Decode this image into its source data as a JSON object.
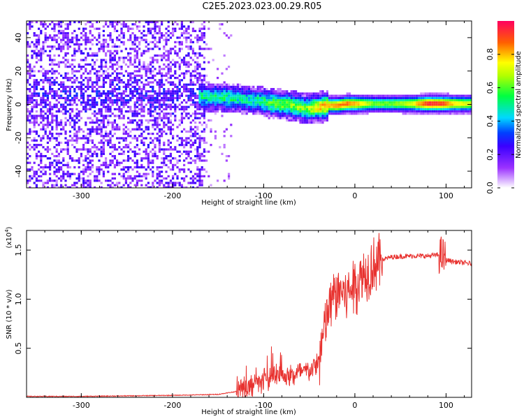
{
  "title": "C2E5.2023.023.00.29.R05",
  "chart_data": [
    {
      "type": "heatmap",
      "title": "C2E5.2023.023.00.29.R05",
      "xlabel": "Height of straight line (km)",
      "ylabel": "Frequency (Hz)",
      "xlim": [
        -360,
        128
      ],
      "ylim": [
        -50,
        50
      ],
      "xticks": [
        -300,
        -200,
        -100,
        0,
        100
      ],
      "yticks": [
        -40,
        -20,
        0,
        20,
        40
      ],
      "xtick_labels": [
        "-300",
        "-200",
        "-100",
        "0",
        "100"
      ],
      "ytick_labels": [
        "-40",
        "-20",
        "0",
        "20",
        "40"
      ],
      "ridge": {
        "x": [
          -170,
          -150,
          -130,
          -110,
          -90,
          -70,
          -55,
          -40,
          -30,
          -20,
          -10,
          0,
          20,
          40,
          60,
          80,
          95,
          110,
          128
        ],
        "center_hz": [
          5,
          5,
          4,
          3,
          1,
          0,
          -2,
          -1,
          0,
          0,
          1,
          1,
          1,
          1,
          1,
          1,
          1,
          1,
          1
        ],
        "peak_amplitude": [
          0.45,
          0.5,
          0.45,
          0.45,
          0.55,
          0.6,
          0.6,
          0.75,
          0.8,
          0.85,
          0.85,
          0.8,
          0.6,
          0.6,
          0.7,
          0.95,
          0.9,
          0.75,
          0.7
        ]
      },
      "colorbar": {
        "label": "Normalized spectral amplitude",
        "range": [
          0,
          1
        ],
        "ticks": [
          0.0,
          0.2,
          0.4,
          0.6,
          0.8
        ],
        "tick_labels": [
          "0.0",
          "0.2",
          "0.4",
          "0.6",
          "0.8"
        ]
      },
      "grid": false
    },
    {
      "type": "line",
      "xlabel": "Height of straight line (km)",
      "ylabel": "SNR (10 * v/v)",
      "scale_label": "(x10",
      "scale_exp": "4",
      "scale_close": ")",
      "xlim": [
        -360,
        128
      ],
      "ylim": [
        0,
        1.7
      ],
      "xticks": [
        -300,
        -200,
        -100,
        0,
        100
      ],
      "yticks": [
        0.5,
        1.0,
        1.5
      ],
      "xtick_labels": [
        "-300",
        "-200",
        "-100",
        "0",
        "100"
      ],
      "ytick_labels": [
        "0.5",
        "1.0",
        "1.5"
      ],
      "series": [
        {
          "color": "#e8322f",
          "x": [
            -360,
            -300,
            -250,
            -200,
            -150,
            -130,
            -110,
            -100,
            -90,
            -80,
            -70,
            -60,
            -50,
            -40,
            -35,
            -30,
            -25,
            -20,
            -15,
            -10,
            -5,
            0,
            5,
            10,
            15,
            20,
            30,
            40,
            60,
            80,
            90,
            95,
            100,
            110,
            128
          ],
          "y": [
            0.01,
            0.01,
            0.015,
            0.02,
            0.03,
            0.06,
            0.12,
            0.16,
            0.2,
            0.22,
            0.22,
            0.25,
            0.27,
            0.35,
            0.6,
            0.85,
            1.0,
            1.05,
            1.1,
            1.05,
            1.1,
            1.15,
            1.2,
            1.25,
            1.3,
            1.35,
            1.4,
            1.43,
            1.44,
            1.44,
            1.45,
            1.45,
            1.4,
            1.38,
            1.36
          ]
        }
      ],
      "grid": false
    }
  ]
}
